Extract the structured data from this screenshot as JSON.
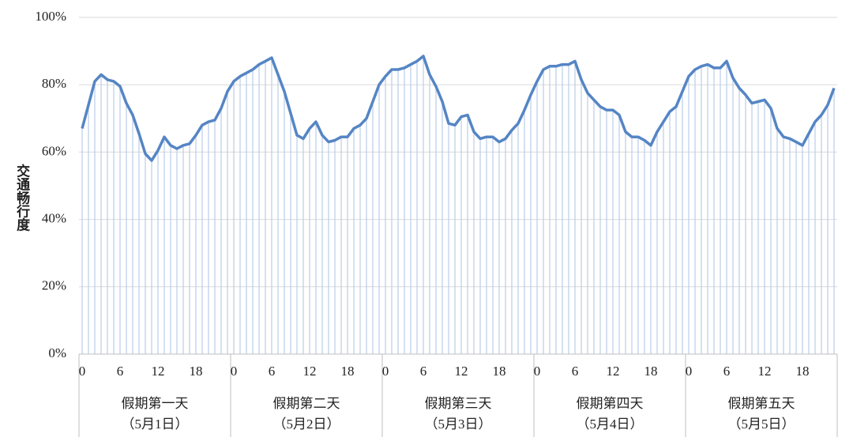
{
  "chart_data": {
    "type": "line",
    "ylabel": "交通畅行度",
    "categories": [
      "0",
      null,
      null,
      null,
      null,
      null,
      "6",
      null,
      null,
      null,
      null,
      null,
      "12",
      null,
      null,
      null,
      null,
      null,
      "18",
      null,
      null,
      null,
      null,
      null,
      "0",
      null,
      null,
      null,
      null,
      null,
      "6",
      null,
      null,
      null,
      null,
      null,
      "12",
      null,
      null,
      null,
      null,
      null,
      "18",
      null,
      null,
      null,
      null,
      null,
      "0",
      null,
      null,
      null,
      null,
      null,
      "6",
      null,
      null,
      null,
      null,
      null,
      "12",
      null,
      null,
      null,
      null,
      null,
      "18",
      null,
      null,
      null,
      null,
      null,
      "0",
      null,
      null,
      null,
      null,
      null,
      "6",
      null,
      null,
      null,
      null,
      null,
      "12",
      null,
      null,
      null,
      null,
      null,
      "18",
      null,
      null,
      null,
      null,
      null,
      "0",
      null,
      null,
      null,
      null,
      null,
      "6",
      null,
      null,
      null,
      null,
      null,
      "12",
      null,
      null,
      null,
      null,
      null,
      "18",
      null,
      null,
      null,
      null,
      null
    ],
    "groups": [
      {
        "name": "假期第一天",
        "date": "（5月1日）"
      },
      {
        "name": "假期第二天",
        "date": "（5月2日）"
      },
      {
        "name": "假期第三天",
        "date": "（5月3日）"
      },
      {
        "name": "假期第四天",
        "date": "（5月4日）"
      },
      {
        "name": "假期第五天",
        "date": "（5月5日）"
      }
    ],
    "values": [
      67,
      74,
      81,
      83,
      81.5,
      81,
      79.5,
      74.5,
      71,
      65.5,
      59.5,
      57.5,
      60.5,
      64.5,
      62,
      61,
      62,
      62.5,
      65,
      68,
      69,
      69.5,
      73,
      78,
      81,
      82.5,
      83.5,
      84.5,
      86,
      87,
      88,
      83,
      78,
      71.5,
      65,
      64,
      67,
      69,
      65,
      63,
      63.5,
      64.5,
      64.5,
      67,
      68,
      70,
      75,
      80,
      82.5,
      84.5,
      84.5,
      85,
      86,
      87,
      88.5,
      83,
      79.5,
      75,
      68.5,
      68,
      70.5,
      71,
      66,
      64,
      64.5,
      64.5,
      63,
      64,
      66.5,
      68.5,
      72.5,
      77,
      81,
      84.5,
      85.5,
      85.5,
      86,
      86,
      87,
      81.5,
      77.5,
      75.5,
      73.5,
      72.5,
      72.5,
      71,
      66,
      64.5,
      64.5,
      63.5,
      62,
      66,
      69,
      72,
      73.5,
      78,
      82.5,
      84.5,
      85.5,
      86,
      85,
      85,
      87,
      82,
      79,
      77,
      74.5,
      75,
      75.5,
      73,
      67,
      64.5,
      64,
      63,
      62,
      65.5,
      69,
      71,
      74,
      79
    ],
    "color": "#5585c4",
    "drop_line_color": "#b9cdea",
    "ylim": [
      0,
      100
    ],
    "yticks": [
      {
        "value": 0,
        "label": "0%"
      },
      {
        "value": 20,
        "label": "20%"
      },
      {
        "value": 40,
        "label": "40%"
      },
      {
        "value": 60,
        "label": "60%"
      },
      {
        "value": 80,
        "label": "80%"
      },
      {
        "value": 100,
        "label": "100%"
      }
    ],
    "grid": true
  }
}
